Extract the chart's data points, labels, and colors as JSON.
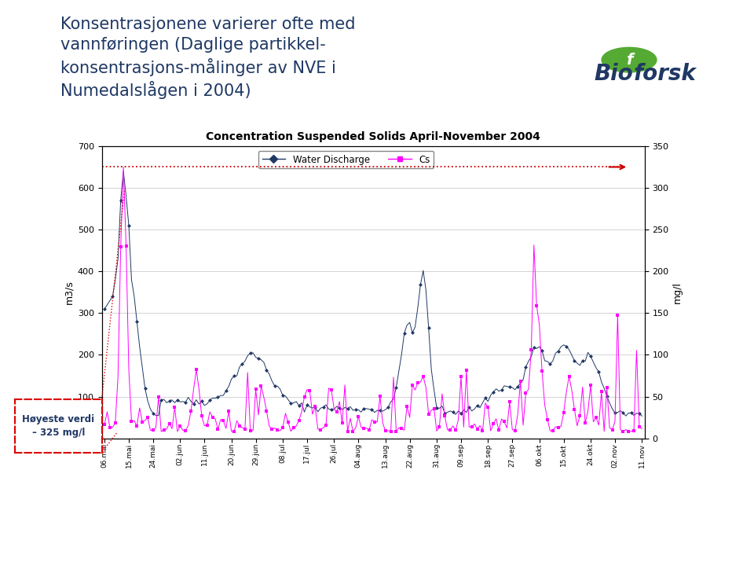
{
  "title": "Concentration Suspended Solids April-November 2004",
  "slide_title": "Konsentrasjonene varierer ofte med\nvannføringen (Daglige partikkel-\nkonsentrasjons-målinger av NVE i\nNumedalslågen i 2004)",
  "ylabel_left": "m3/s",
  "ylabel_right": "mg/l",
  "ylim_left": [
    0,
    700
  ],
  "ylim_right": [
    0,
    350
  ],
  "yticks_left": [
    0,
    100,
    200,
    300,
    400,
    500,
    600,
    700
  ],
  "yticks_right": [
    0,
    50,
    100,
    150,
    200,
    250,
    300,
    350
  ],
  "legend_label_discharge": "Water Discharge",
  "legend_label_cs": "Cs",
  "annotation_text": "Høyeste verdi\n– 325 mg/l",
  "discharge_color": "#1F3864",
  "cs_color": "#FF00FF",
  "dotted_line_color": "#CC0000",
  "bg_color": "#FFFFFF",
  "slide_bg": "#FFFFFF",
  "bottom_green": "#AACC44",
  "bottom_blue": "#4A6F9A",
  "x_labels": [
    "06.mai",
    "15.mai",
    "24.mai",
    "02.jun",
    "11.jun",
    "20.jun",
    "29.jun",
    "08.jul",
    "17.jul",
    "26.jul",
    "04.aug",
    "13.aug",
    "22.aug",
    "31.aug",
    "09.sep",
    "18.sep",
    "27.sep",
    "06.okt",
    "15.okt",
    "24.okt",
    "02.nov",
    "11.nov"
  ],
  "n_points": 200
}
